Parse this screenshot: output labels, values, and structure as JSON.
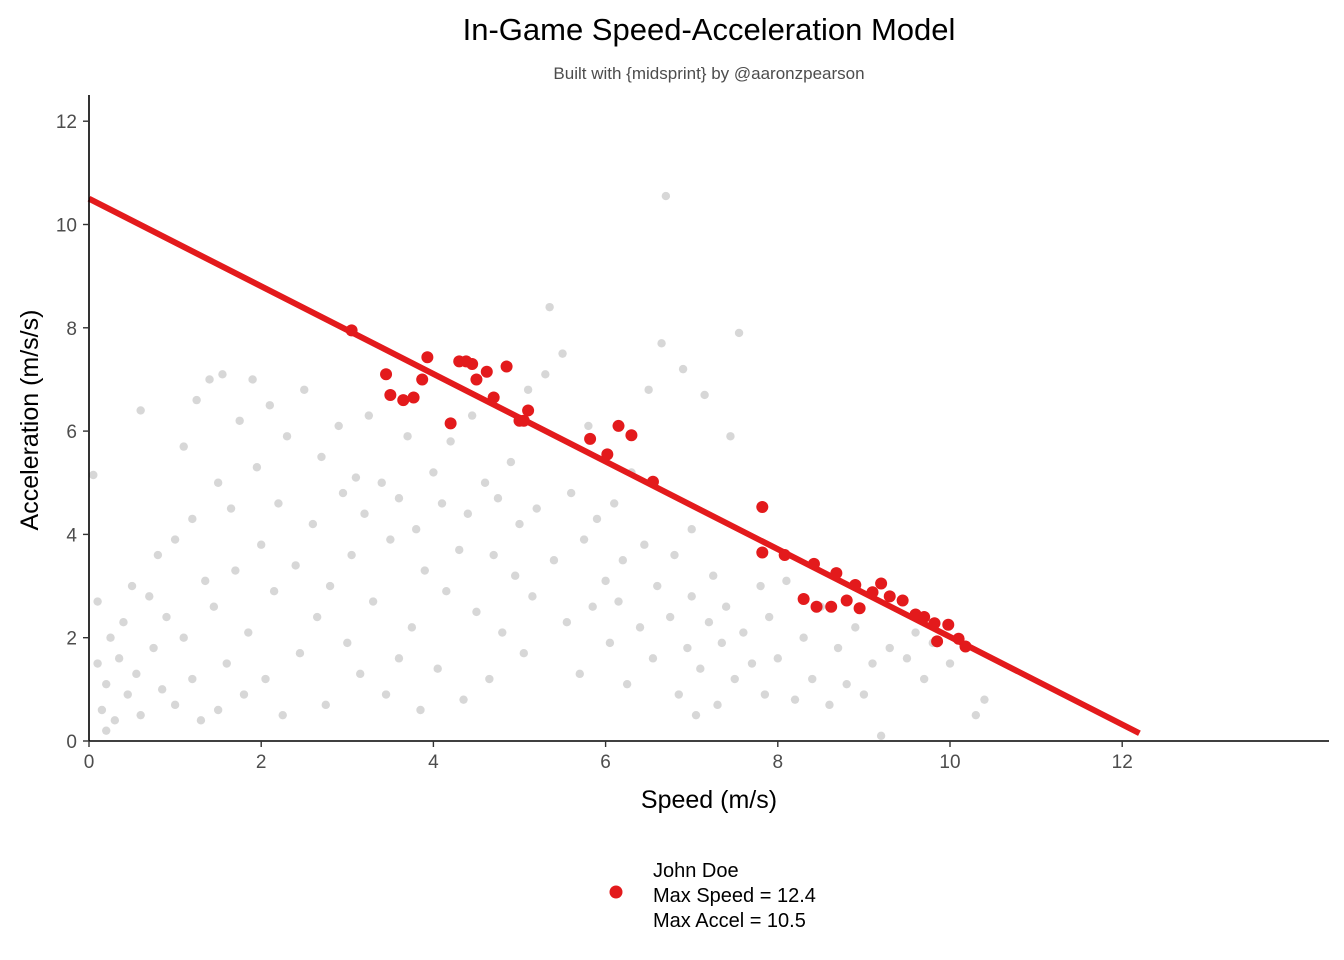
{
  "chart_data": {
    "type": "scatter",
    "title": "In-Game Speed-Acceleration Model",
    "subtitle": "Built with {midsprint} by @aaronzpearson",
    "xlabel": "Speed (m/s)",
    "ylabel": "Acceleration (m/s/s)",
    "xlim": [
      0,
      14.4
    ],
    "ylim": [
      0,
      12.5
    ],
    "xticks": [
      0,
      2,
      4,
      6,
      8,
      10,
      12
    ],
    "yticks": [
      0,
      2,
      4,
      6,
      8,
      10,
      12
    ],
    "grid": false,
    "legend_position": "bottom",
    "legend": {
      "lines": [
        "John Doe",
        "Max Speed = 12.4",
        "Max Accel = 10.5"
      ]
    },
    "colors": {
      "background_points": "#bdbdbd",
      "highlight": "#e31a1c",
      "axis": "#000000"
    },
    "series": [
      {
        "role": "background_cloud",
        "note_points": "representative sample of the grey cloud",
        "points": [
          [
            0.05,
            5.15
          ],
          [
            0.1,
            2.7
          ],
          [
            0.1,
            1.5
          ],
          [
            0.15,
            0.6
          ],
          [
            0.2,
            0.2
          ],
          [
            0.2,
            1.1
          ],
          [
            0.25,
            2.0
          ],
          [
            0.3,
            0.4
          ],
          [
            0.35,
            1.6
          ],
          [
            0.4,
            2.3
          ],
          [
            0.45,
            0.9
          ],
          [
            0.5,
            3.0
          ],
          [
            0.55,
            1.3
          ],
          [
            0.6,
            6.4
          ],
          [
            0.6,
            0.5
          ],
          [
            0.7,
            2.8
          ],
          [
            0.75,
            1.8
          ],
          [
            0.8,
            3.6
          ],
          [
            0.85,
            1.0
          ],
          [
            0.9,
            2.4
          ],
          [
            1.0,
            3.9
          ],
          [
            1.0,
            0.7
          ],
          [
            1.1,
            5.7
          ],
          [
            1.1,
            2.0
          ],
          [
            1.2,
            1.2
          ],
          [
            1.2,
            4.3
          ],
          [
            1.25,
            6.6
          ],
          [
            1.3,
            0.4
          ],
          [
            1.35,
            3.1
          ],
          [
            1.4,
            7.0
          ],
          [
            1.45,
            2.6
          ],
          [
            1.5,
            5.0
          ],
          [
            1.5,
            0.6
          ],
          [
            1.55,
            7.1
          ],
          [
            1.6,
            1.5
          ],
          [
            1.65,
            4.5
          ],
          [
            1.7,
            3.3
          ],
          [
            1.75,
            6.2
          ],
          [
            1.8,
            0.9
          ],
          [
            1.85,
            2.1
          ],
          [
            1.9,
            7.0
          ],
          [
            1.95,
            5.3
          ],
          [
            2.0,
            3.8
          ],
          [
            2.05,
            1.2
          ],
          [
            2.1,
            6.5
          ],
          [
            2.15,
            2.9
          ],
          [
            2.2,
            4.6
          ],
          [
            2.25,
            0.5
          ],
          [
            2.3,
            5.9
          ],
          [
            2.4,
            3.4
          ],
          [
            2.45,
            1.7
          ],
          [
            2.5,
            6.8
          ],
          [
            2.6,
            4.2
          ],
          [
            2.65,
            2.4
          ],
          [
            2.7,
            5.5
          ],
          [
            2.75,
            0.7
          ],
          [
            2.8,
            3.0
          ],
          [
            2.9,
            6.1
          ],
          [
            2.95,
            4.8
          ],
          [
            3.0,
            1.9
          ],
          [
            3.05,
            3.6
          ],
          [
            3.1,
            5.1
          ],
          [
            3.15,
            1.3
          ],
          [
            3.2,
            4.4
          ],
          [
            3.25,
            6.3
          ],
          [
            3.3,
            2.7
          ],
          [
            3.4,
            5.0
          ],
          [
            3.45,
            0.9
          ],
          [
            3.5,
            3.9
          ],
          [
            3.6,
            4.7
          ],
          [
            3.6,
            1.6
          ],
          [
            3.7,
            5.9
          ],
          [
            3.75,
            2.2
          ],
          [
            3.8,
            4.1
          ],
          [
            3.85,
            0.6
          ],
          [
            3.9,
            3.3
          ],
          [
            4.0,
            5.2
          ],
          [
            4.05,
            1.4
          ],
          [
            4.1,
            4.6
          ],
          [
            4.15,
            2.9
          ],
          [
            4.2,
            5.8
          ],
          [
            4.3,
            3.7
          ],
          [
            4.35,
            0.8
          ],
          [
            4.4,
            4.4
          ],
          [
            4.45,
            6.3
          ],
          [
            4.5,
            2.5
          ],
          [
            4.6,
            5.0
          ],
          [
            4.65,
            1.2
          ],
          [
            4.7,
            3.6
          ],
          [
            4.75,
            4.7
          ],
          [
            4.8,
            2.1
          ],
          [
            4.9,
            5.4
          ],
          [
            4.95,
            3.2
          ],
          [
            5.0,
            4.2
          ],
          [
            5.05,
            1.7
          ],
          [
            5.1,
            6.8
          ],
          [
            5.15,
            2.8
          ],
          [
            5.2,
            4.5
          ],
          [
            5.3,
            7.1
          ],
          [
            5.35,
            8.4
          ],
          [
            5.4,
            3.5
          ],
          [
            5.5,
            7.5
          ],
          [
            5.55,
            2.3
          ],
          [
            5.6,
            4.8
          ],
          [
            5.7,
            1.3
          ],
          [
            5.75,
            3.9
          ],
          [
            5.8,
            6.1
          ],
          [
            5.85,
            2.6
          ],
          [
            5.9,
            4.3
          ],
          [
            6.0,
            3.1
          ],
          [
            6.05,
            1.9
          ],
          [
            6.1,
            4.6
          ],
          [
            6.15,
            2.7
          ],
          [
            6.2,
            3.5
          ],
          [
            6.25,
            1.1
          ],
          [
            6.3,
            5.2
          ],
          [
            6.4,
            2.2
          ],
          [
            6.45,
            3.8
          ],
          [
            6.5,
            6.8
          ],
          [
            6.55,
            1.6
          ],
          [
            6.6,
            3.0
          ],
          [
            6.65,
            7.7
          ],
          [
            6.7,
            10.55
          ],
          [
            6.75,
            2.4
          ],
          [
            6.8,
            3.6
          ],
          [
            6.85,
            0.9
          ],
          [
            6.9,
            7.2
          ],
          [
            6.95,
            1.8
          ],
          [
            7.0,
            4.1
          ],
          [
            7.0,
            2.8
          ],
          [
            7.05,
            0.5
          ],
          [
            7.1,
            1.4
          ],
          [
            7.15,
            6.7
          ],
          [
            7.2,
            2.3
          ],
          [
            7.25,
            3.2
          ],
          [
            7.3,
            0.7
          ],
          [
            7.35,
            1.9
          ],
          [
            7.4,
            2.6
          ],
          [
            7.45,
            5.9
          ],
          [
            7.5,
            1.2
          ],
          [
            7.55,
            7.9
          ],
          [
            7.6,
            2.1
          ],
          [
            7.7,
            1.5
          ],
          [
            7.8,
            3.0
          ],
          [
            7.85,
            0.9
          ],
          [
            7.9,
            2.4
          ],
          [
            8.0,
            1.6
          ],
          [
            8.1,
            3.1
          ],
          [
            8.2,
            0.8
          ],
          [
            8.3,
            2.0
          ],
          [
            8.4,
            1.2
          ],
          [
            8.5,
            2.6
          ],
          [
            8.6,
            0.7
          ],
          [
            8.7,
            1.8
          ],
          [
            8.8,
            1.1
          ],
          [
            8.9,
            2.2
          ],
          [
            9.0,
            0.9
          ],
          [
            9.1,
            1.5
          ],
          [
            9.2,
            0.1
          ],
          [
            9.3,
            1.8
          ],
          [
            9.5,
            1.6
          ],
          [
            9.6,
            2.1
          ],
          [
            9.7,
            1.2
          ],
          [
            9.8,
            1.9
          ],
          [
            10.0,
            1.5
          ],
          [
            10.3,
            0.5
          ],
          [
            10.4,
            0.8
          ]
        ]
      },
      {
        "role": "highlight_points",
        "name": "John Doe",
        "points": [
          [
            3.05,
            7.95
          ],
          [
            3.45,
            7.1
          ],
          [
            3.5,
            6.7
          ],
          [
            3.65,
            6.6
          ],
          [
            3.77,
            6.65
          ],
          [
            3.87,
            7.0
          ],
          [
            3.93,
            7.43
          ],
          [
            4.2,
            6.15
          ],
          [
            4.3,
            7.35
          ],
          [
            4.38,
            7.35
          ],
          [
            4.45,
            7.3
          ],
          [
            4.5,
            7.0
          ],
          [
            4.62,
            7.15
          ],
          [
            4.7,
            6.65
          ],
          [
            4.85,
            7.25
          ],
          [
            5.0,
            6.2
          ],
          [
            5.05,
            6.2
          ],
          [
            5.1,
            6.4
          ],
          [
            5.82,
            5.85
          ],
          [
            6.02,
            5.55
          ],
          [
            6.15,
            6.1
          ],
          [
            6.3,
            5.92
          ],
          [
            6.55,
            5.02
          ],
          [
            7.82,
            4.53
          ],
          [
            7.82,
            3.65
          ],
          [
            8.08,
            3.6
          ],
          [
            8.3,
            2.75
          ],
          [
            8.42,
            3.43
          ],
          [
            8.45,
            2.6
          ],
          [
            8.62,
            2.6
          ],
          [
            8.68,
            3.25
          ],
          [
            8.8,
            2.72
          ],
          [
            8.9,
            3.02
          ],
          [
            8.95,
            2.57
          ],
          [
            9.1,
            2.88
          ],
          [
            9.2,
            3.05
          ],
          [
            9.3,
            2.8
          ],
          [
            9.45,
            2.72
          ],
          [
            9.6,
            2.45
          ],
          [
            9.7,
            2.4
          ],
          [
            9.82,
            2.28
          ],
          [
            9.85,
            1.93
          ],
          [
            9.98,
            2.25
          ],
          [
            10.1,
            1.98
          ],
          [
            10.18,
            1.83
          ]
        ]
      },
      {
        "role": "model_line",
        "type": "line",
        "points": [
          [
            0,
            10.5
          ],
          [
            12.2,
            0.15
          ]
        ]
      }
    ]
  }
}
